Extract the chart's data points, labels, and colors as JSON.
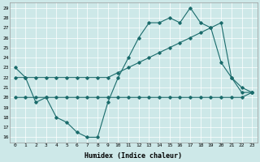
{
  "xlabel": "Humidex (Indice chaleur)",
  "bg_color": "#cde8e8",
  "line_color": "#1a6b6b",
  "xlim": [
    -0.5,
    23.5
  ],
  "ylim": [
    15.5,
    29.5
  ],
  "xticks": [
    0,
    1,
    2,
    3,
    4,
    5,
    6,
    7,
    8,
    9,
    10,
    11,
    12,
    13,
    14,
    15,
    16,
    17,
    18,
    19,
    20,
    21,
    22,
    23
  ],
  "yticks": [
    16,
    17,
    18,
    19,
    20,
    21,
    22,
    23,
    24,
    25,
    26,
    27,
    28,
    29
  ],
  "series1": [
    23,
    22,
    19.5,
    20,
    18,
    17.5,
    16.5,
    16,
    16,
    19.5,
    22,
    24,
    26,
    27.5,
    27.5,
    28,
    27.5,
    29,
    27.5,
    27,
    23.5,
    22,
    20.5,
    20.5
  ],
  "series2": [
    22,
    22,
    22,
    22,
    22,
    22,
    22,
    22,
    22,
    22,
    22.5,
    23,
    23.5,
    24,
    24.5,
    25,
    25.5,
    26,
    26.5,
    27,
    27.5,
    22,
    21,
    20.5
  ],
  "series3": [
    20,
    20,
    20,
    20,
    20,
    20,
    20,
    20,
    20,
    20,
    20,
    20,
    20,
    20,
    20,
    20,
    20,
    20,
    20,
    20,
    20,
    20,
    20,
    20.5
  ]
}
